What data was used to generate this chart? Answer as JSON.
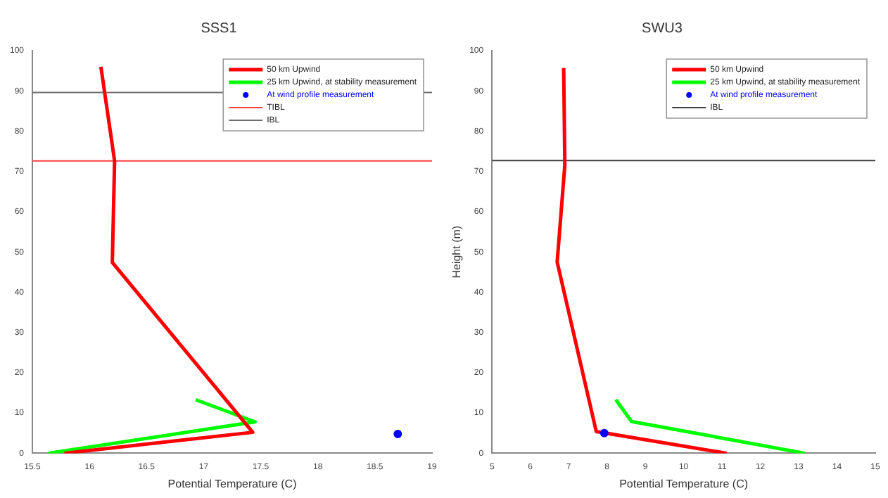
{
  "chart_data": [
    {
      "type": "line",
      "title": "SSS1",
      "xlabel": "Potential Temperature (C)",
      "xlim": [
        15.5,
        19
      ],
      "xticks": [
        15.5,
        16,
        16.5,
        17,
        17.5,
        18,
        18.5,
        19
      ],
      "ylim": [
        0,
        100
      ],
      "yticks": [
        0,
        10,
        20,
        30,
        40,
        50,
        60,
        70,
        80,
        90,
        100
      ],
      "grid": false,
      "legend": "top right",
      "tick_labels": true,
      "series": [
        {
          "name": "50 km Upwind",
          "color": "#ff0000",
          "type": "line",
          "marker": "none",
          "x": [
            15.78,
            17.43,
            16.2,
            16.22,
            16.1
          ],
          "values": [
            0,
            5.2,
            47.4,
            72.6,
            96
          ]
        },
        {
          "name": "25 km Upwind, at stability measurement",
          "color": "#00ff00",
          "type": "line",
          "marker": "none",
          "x": [
            15.64,
            17.45,
            16.93
          ],
          "values": [
            0,
            7.8,
            13.3
          ]
        },
        {
          "name": "At wind profile measurement",
          "color": "#0000ff",
          "type": "scatter",
          "marker": "circle",
          "x": [
            18.7
          ],
          "values": [
            4.8
          ]
        }
      ],
      "ref_lines": [
        {
          "axis": "y",
          "value": 72.6,
          "label": "TIBL",
          "color": "#ff4040"
        },
        {
          "axis": "y",
          "value": 89.6,
          "label": "IBL",
          "color": "#707070"
        }
      ]
    },
    {
      "type": "line",
      "title": "SWU3",
      "xlabel": "Potential Temperature (C)",
      "ylabel": "Height (m)",
      "xlim": [
        5,
        15
      ],
      "xticks": [
        5,
        6,
        7,
        8,
        9,
        10,
        11,
        12,
        13,
        14,
        15
      ],
      "ylim": [
        0,
        100
      ],
      "yticks": [
        0,
        10,
        20,
        30,
        40,
        50,
        60,
        70,
        80,
        90,
        100
      ],
      "grid": false,
      "legend": "top right",
      "tick_labels": true,
      "series": [
        {
          "name": "50 km Upwind",
          "color": "#ff0000",
          "type": "line",
          "marker": "none",
          "x": [
            11.12,
            7.72,
            6.7,
            6.9,
            6.87
          ],
          "values": [
            0,
            5.4,
            47.5,
            71.6,
            95.7
          ]
        },
        {
          "name": "25 km Upwind, at stability measurement",
          "color": "#00ff00",
          "type": "line",
          "marker": "none",
          "x": [
            13.16,
            8.64,
            8.23
          ],
          "values": [
            0,
            7.9,
            13.3
          ]
        },
        {
          "name": "At wind profile measurement",
          "color": "#0000ff",
          "type": "scatter",
          "marker": "circle",
          "x": [
            7.93
          ],
          "values": [
            5
          ]
        }
      ],
      "ref_lines": [
        {
          "axis": "y",
          "value": 72.7,
          "label": "IBL",
          "color": "#404040"
        }
      ]
    }
  ]
}
